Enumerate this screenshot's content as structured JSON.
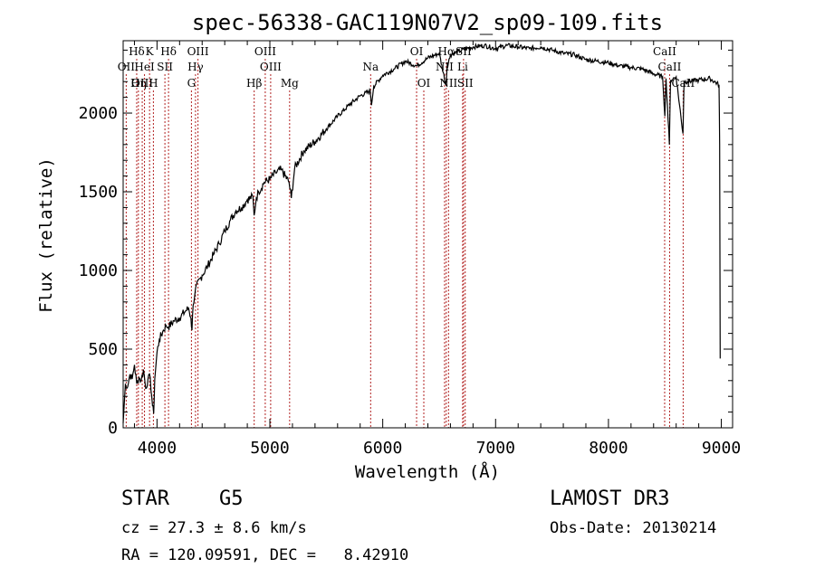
{
  "chart_data": {
    "type": "line",
    "title": "spec-56338-GAC119N07V2_sp09-109.fits",
    "xlabel": "Wavelength (Å)",
    "ylabel": "Flux (relative)",
    "xlim": [
      3700,
      9100
    ],
    "ylim": [
      0,
      2460
    ],
    "xticks": [
      4000,
      5000,
      6000,
      7000,
      8000,
      9000
    ],
    "yticks": [
      0,
      500,
      1000,
      1500,
      2000
    ],
    "grid": false,
    "series": [
      {
        "name": "flux",
        "points": [
          [
            3700,
            30
          ],
          [
            3720,
            280
          ],
          [
            3740,
            260
          ],
          [
            3760,
            340
          ],
          [
            3780,
            310
          ],
          [
            3800,
            400
          ],
          [
            3820,
            280
          ],
          [
            3840,
            320
          ],
          [
            3860,
            300
          ],
          [
            3880,
            370
          ],
          [
            3900,
            250
          ],
          [
            3920,
            310
          ],
          [
            3940,
            320
          ],
          [
            3960,
            140
          ],
          [
            3970,
            90
          ],
          [
            3980,
            310
          ],
          [
            4000,
            480
          ],
          [
            4020,
            560
          ],
          [
            4050,
            610
          ],
          [
            4080,
            650
          ],
          [
            4100,
            640
          ],
          [
            4150,
            680
          ],
          [
            4200,
            700
          ],
          [
            4250,
            740
          ],
          [
            4280,
            760
          ],
          [
            4300,
            700
          ],
          [
            4310,
            620
          ],
          [
            4320,
            780
          ],
          [
            4340,
            880
          ],
          [
            4400,
            970
          ],
          [
            4450,
            1030
          ],
          [
            4500,
            1100
          ],
          [
            4550,
            1170
          ],
          [
            4600,
            1250
          ],
          [
            4650,
            1320
          ],
          [
            4700,
            1380
          ],
          [
            4750,
            1400
          ],
          [
            4800,
            1450
          ],
          [
            4850,
            1470
          ],
          [
            4860,
            1350
          ],
          [
            4880,
            1460
          ],
          [
            4900,
            1500
          ],
          [
            4950,
            1560
          ],
          [
            5000,
            1580
          ],
          [
            5050,
            1620
          ],
          [
            5100,
            1640
          ],
          [
            5170,
            1560
          ],
          [
            5190,
            1460
          ],
          [
            5220,
            1650
          ],
          [
            5300,
            1760
          ],
          [
            5400,
            1820
          ],
          [
            5500,
            1900
          ],
          [
            5600,
            1980
          ],
          [
            5700,
            2050
          ],
          [
            5800,
            2110
          ],
          [
            5890,
            2140
          ],
          [
            5900,
            2050
          ],
          [
            5920,
            2170
          ],
          [
            6000,
            2240
          ],
          [
            6100,
            2280
          ],
          [
            6200,
            2330
          ],
          [
            6300,
            2300
          ],
          [
            6400,
            2350
          ],
          [
            6500,
            2380
          ],
          [
            6560,
            2180
          ],
          [
            6570,
            2290
          ],
          [
            6600,
            2370
          ],
          [
            6700,
            2400
          ],
          [
            6800,
            2420
          ],
          [
            6900,
            2430
          ],
          [
            7000,
            2410
          ],
          [
            7100,
            2430
          ],
          [
            7200,
            2420
          ],
          [
            7300,
            2410
          ],
          [
            7400,
            2420
          ],
          [
            7500,
            2400
          ],
          [
            7600,
            2380
          ],
          [
            7700,
            2370
          ],
          [
            7800,
            2340
          ],
          [
            7900,
            2330
          ],
          [
            8000,
            2320
          ],
          [
            8100,
            2300
          ],
          [
            8200,
            2290
          ],
          [
            8300,
            2280
          ],
          [
            8400,
            2250
          ],
          [
            8480,
            2230
          ],
          [
            8500,
            1980
          ],
          [
            8510,
            2220
          ],
          [
            8540,
            1800
          ],
          [
            8550,
            2210
          ],
          [
            8600,
            2230
          ],
          [
            8660,
            1870
          ],
          [
            8670,
            2200
          ],
          [
            8700,
            2200
          ],
          [
            8800,
            2210
          ],
          [
            8900,
            2220
          ],
          [
            8980,
            2180
          ],
          [
            8985,
            1800
          ],
          [
            8990,
            440
          ]
        ]
      }
    ],
    "lines": [
      {
        "name": "Hδ-top",
        "x": 3820,
        "label": "Hδ",
        "row": 0
      },
      {
        "name": "K",
        "x": 3934,
        "label": "K",
        "row": 0
      },
      {
        "name": "Hδ",
        "x": 4102,
        "label": "Hδ",
        "row": 0
      },
      {
        "name": "OIII-4363",
        "x": 4363,
        "label": "OIII",
        "row": 0
      },
      {
        "name": "OIII-4959",
        "x": 4959,
        "label": "OIII",
        "row": 0
      },
      {
        "name": "OI-6300",
        "x": 6300,
        "label": "OI",
        "row": 0
      },
      {
        "name": "Hα",
        "x": 6563,
        "label": "Hα",
        "row": 0
      },
      {
        "name": "SII-top",
        "x": 6716,
        "label": "SII",
        "row": 0
      },
      {
        "name": "CaII-8498",
        "x": 8498,
        "label": "CaII",
        "row": 0
      },
      {
        "name": "OII",
        "x": 3727,
        "label": "OII",
        "row": 1
      },
      {
        "name": "HeI",
        "x": 3889,
        "label": "HeI",
        "row": 1
      },
      {
        "name": "SII-4070",
        "x": 4070,
        "label": "SII",
        "row": 1
      },
      {
        "name": "Hγ",
        "x": 4341,
        "label": "Hγ",
        "row": 1
      },
      {
        "name": "OIII-5007",
        "x": 5007,
        "label": "OIII",
        "row": 1
      },
      {
        "name": "Na",
        "x": 5893,
        "label": "Na",
        "row": 1
      },
      {
        "name": "NII-6548",
        "x": 6548,
        "label": "NII",
        "row": 1
      },
      {
        "name": "Li",
        "x": 6708,
        "label": "Li",
        "row": 1
      },
      {
        "name": "CaII-8542",
        "x": 8542,
        "label": "CaII",
        "row": 1
      },
      {
        "name": "OIII-3869",
        "x": 3869,
        "label": "OIII",
        "row": 2
      },
      {
        "name": "Hη",
        "x": 3835,
        "label": "Hη",
        "row": 2
      },
      {
        "name": "H",
        "x": 3968,
        "label": "H",
        "row": 2
      },
      {
        "name": "G",
        "x": 4305,
        "label": "G",
        "row": 2
      },
      {
        "name": "Hβ",
        "x": 4861,
        "label": "Hβ",
        "row": 2
      },
      {
        "name": "Mg",
        "x": 5175,
        "label": "Mg",
        "row": 2
      },
      {
        "name": "OI-6364",
        "x": 6364,
        "label": "OI",
        "row": 2
      },
      {
        "name": "NII-6583",
        "x": 6583,
        "label": "NII",
        "row": 2
      },
      {
        "name": "SII-6731",
        "x": 6731,
        "label": "SII",
        "row": 2
      },
      {
        "name": "CaII-8662",
        "x": 8662,
        "label": "CaII",
        "row": 2
      }
    ]
  },
  "info": {
    "object_class": "STAR",
    "subclass": "G5",
    "survey": "LAMOST DR3",
    "redshift": "cz = 27.3 ± 8.6 km/s",
    "obs_date": "Obs-Date: 20130214",
    "coords": "RA = 120.09591, DEC =   8.42910"
  },
  "colors": {
    "spectrum": "#000000",
    "line_marker": "#b22222",
    "axes": "#000000"
  }
}
